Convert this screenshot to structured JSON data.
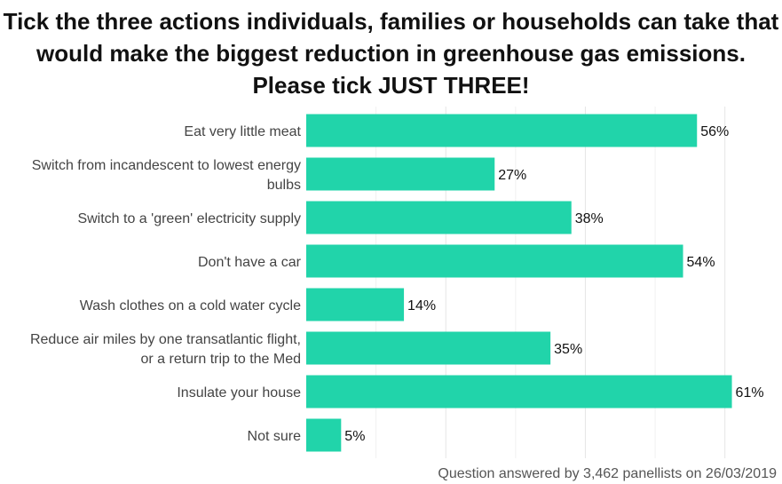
{
  "chart_data": {
    "type": "bar",
    "orientation": "horizontal",
    "title": "Tick the three actions individuals, families or households can take that would make the biggest reduction in greenhouse gas emissions. Please tick JUST THREE!",
    "categories": [
      [
        "Eat very little meat"
      ],
      [
        "Switch from incandescent to lowest energy",
        "bulbs"
      ],
      [
        "Switch to a 'green' electricity supply"
      ],
      [
        "Don't have a car"
      ],
      [
        "Wash clothes on a cold water cycle"
      ],
      [
        "Reduce air miles by one transatlantic flight,",
        "or a return trip to the Med"
      ],
      [
        "Insulate your house"
      ],
      [
        "Not sure"
      ]
    ],
    "values": [
      56,
      27,
      38,
      54,
      14,
      35,
      61,
      5
    ],
    "value_labels": [
      "56%",
      "27%",
      "38%",
      "54%",
      "14%",
      "35%",
      "61%",
      "5%"
    ],
    "unit": "%",
    "xlim": [
      0,
      65
    ],
    "grid": true,
    "bar_color": "#21d4aa",
    "caption": "Question answered by 3,462 panellists on 26/03/2019"
  }
}
